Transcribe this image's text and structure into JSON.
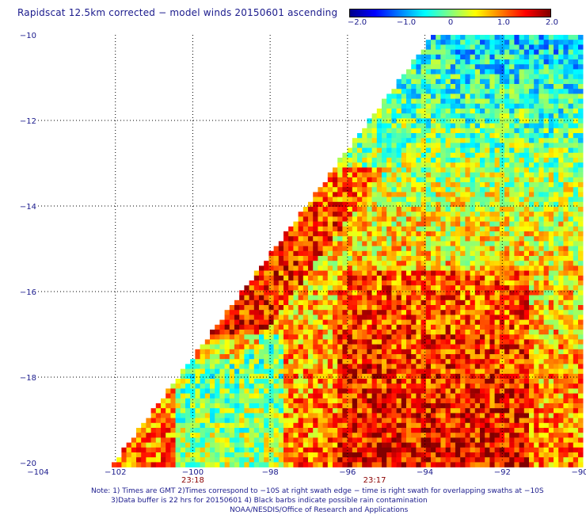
{
  "header": {
    "title": "Rapidscat 12.5km corrected − model winds 20150601 ascending"
  },
  "colorbar": {
    "ticks": [
      "−2.0",
      "−1.0",
      "0",
      "1.0",
      "2.0"
    ],
    "stops": [
      "#00008b",
      "#0000ff",
      "#0080ff",
      "#00ffff",
      "#80ff80",
      "#ffff00",
      "#ff8000",
      "#ff0000",
      "#800000"
    ]
  },
  "chart_data": {
    "type": "heatmap",
    "title": "Rapidscat 12.5km corrected − model winds 20150601 ascending",
    "value_range": [
      -2.0,
      2.0
    ],
    "x_ticks": [
      "−104",
      "−102",
      "−100",
      "−98",
      "−96",
      "−94",
      "−92",
      "−90"
    ],
    "y_ticks": [
      "−10",
      "−12",
      "−14",
      "−16",
      "−18",
      "−20"
    ],
    "xlim": [
      -104,
      -90
    ],
    "ylim": [
      -20,
      -10
    ],
    "grid": true,
    "time_labels": [
      {
        "lon": -100,
        "text": "23:18"
      },
      {
        "lon": -95.3,
        "text": "23:17"
      }
    ]
  },
  "notes": {
    "line1": "Note: 1) Times are GMT 2)Times correspond to −10S at right swath edge − time is right swath for overlapping swaths at −10S",
    "line2": "3)Data buffer is 22 hrs for 20150601 4) Black barbs indicate possible rain contamination",
    "line3": "NOAA/NESDIS/Office of Research and Applications"
  }
}
